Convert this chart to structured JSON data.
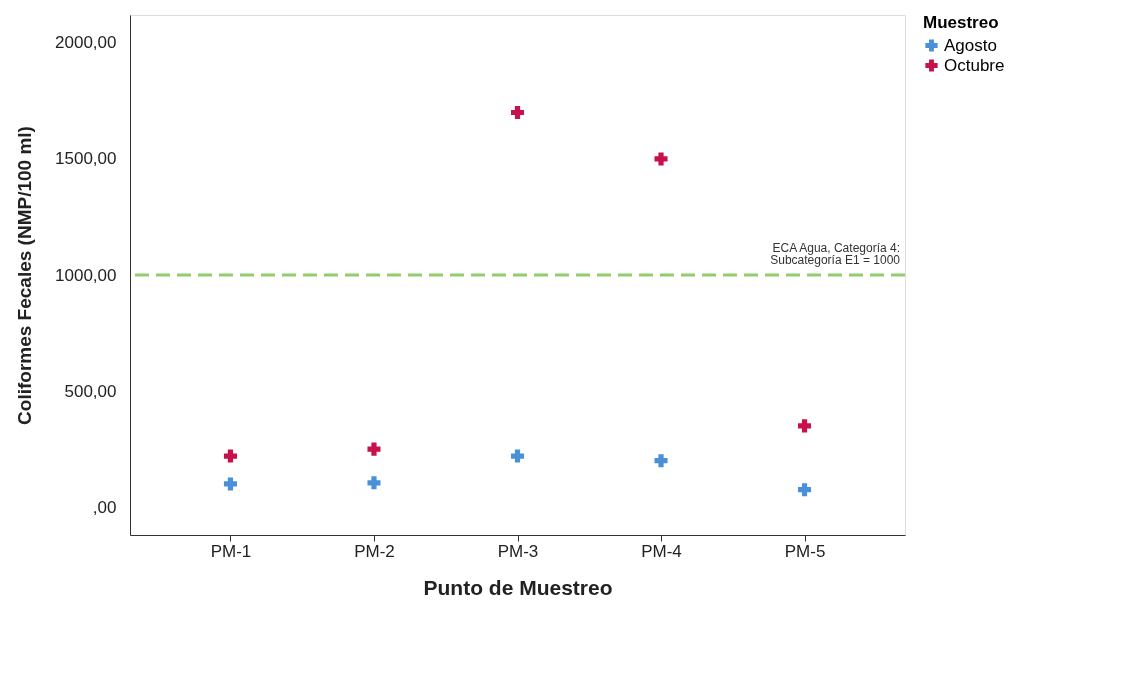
{
  "chart_data": {
    "type": "scatter",
    "xlabel": "Punto de Muestreo",
    "ylabel": "Coliformes Fecales (NMP/100 ml)",
    "legend_title": "Muestreo",
    "categories": [
      "PM-1",
      "PM-2",
      "PM-3",
      "PM-4",
      "PM-5"
    ],
    "series": [
      {
        "name": "Agosto",
        "color": "#4a90d9",
        "values": [
          100,
          105,
          220,
          200,
          75
        ]
      },
      {
        "name": "Octubre",
        "color": "#c8104a",
        "values": [
          220,
          250,
          1700,
          1500,
          350
        ]
      }
    ],
    "ylim": [
      -120,
      2120
    ],
    "yticks": [
      {
        "value": 0,
        "label": ",00"
      },
      {
        "value": 500,
        "label": "500,00"
      },
      {
        "value": 1000,
        "label": "1000,00"
      },
      {
        "value": 1500,
        "label": "1500,00"
      },
      {
        "value": 2000,
        "label": "2000,00"
      }
    ],
    "ref_lines": [
      {
        "axis": "y",
        "value": 1000,
        "label": "ECA Agua, Categoría 4:\nSubcategoría E1 = 1000",
        "color": "#8fce6a",
        "line_style": "dashed"
      }
    ],
    "marker": "cross",
    "grid": false,
    "legend": "top right"
  }
}
